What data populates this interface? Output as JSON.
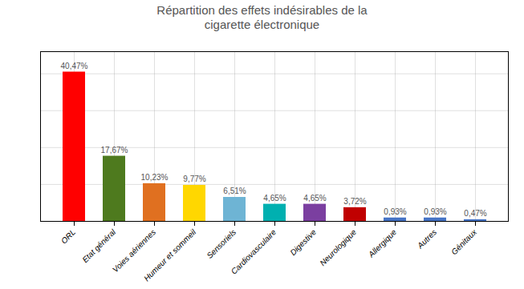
{
  "chart_data": {
    "type": "bar",
    "title": "Répartition des effets indésirables de la\ncigarette électronique",
    "categories": [
      "ORL",
      "Etat général",
      "Voies aériennes",
      "Humeur et sommeil",
      "Sensoriels",
      "Cardiovasculaire",
      "Digestive",
      "Neurologique",
      "Allergique",
      "Autres",
      "Génitaux"
    ],
    "values": [
      40.47,
      17.67,
      10.23,
      9.77,
      6.51,
      4.65,
      4.65,
      3.72,
      0.93,
      0.93,
      0.47
    ],
    "value_labels": [
      "40,47%",
      "17,67%",
      "10,23%",
      "9,77%",
      "6,51%",
      "4,65%",
      "4,65%",
      "3,72%",
      "0,93%",
      "0,93%",
      "0,47%"
    ],
    "colors": [
      "#FF0000",
      "#4E7A1E",
      "#E07020",
      "#FFD700",
      "#6EB4D4",
      "#00B0B0",
      "#7B3FA0",
      "#C00000",
      "#4472C4",
      "#4472C4",
      "#4472C4"
    ],
    "ylim": [
      0,
      46
    ],
    "yticks": [
      0,
      10,
      20,
      30,
      40
    ],
    "grid": true,
    "data_labels": true,
    "tick_labels": "x"
  }
}
